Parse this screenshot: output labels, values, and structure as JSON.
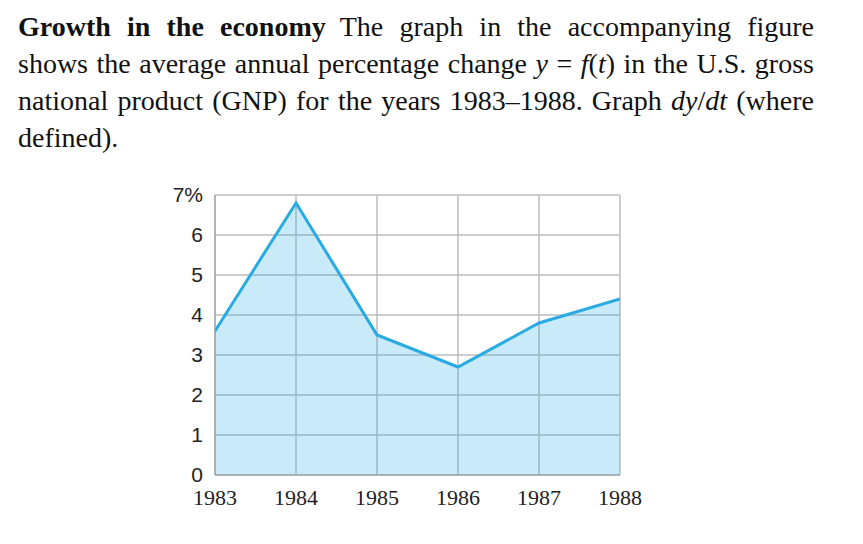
{
  "problem": {
    "heading": "Growth in the economy",
    "text_parts": [
      "The graph in the accompanying figure shows the average annual percentage change ",
      "y",
      " = ",
      "f",
      "(",
      "t",
      ") in the U.S. gross national product (GNP) for the years 1983–1988. Graph ",
      "dy",
      "/",
      "dt",
      " (where defined)."
    ]
  },
  "chart_data": {
    "type": "area",
    "x": [
      1983,
      1984,
      1985,
      1986,
      1987,
      1988
    ],
    "values": [
      3.6,
      6.8,
      3.5,
      2.7,
      3.8,
      4.4
    ],
    "color": "#29abe2",
    "xlim": [
      1983,
      1988
    ],
    "xticks": [
      1983,
      1984,
      1985,
      1986,
      1987,
      1988
    ],
    "ylim": [
      0,
      7
    ],
    "yticks": [
      0,
      1,
      2,
      3,
      4,
      5,
      6,
      {
        "value": 7,
        "label": "7%"
      }
    ],
    "grid": true
  }
}
